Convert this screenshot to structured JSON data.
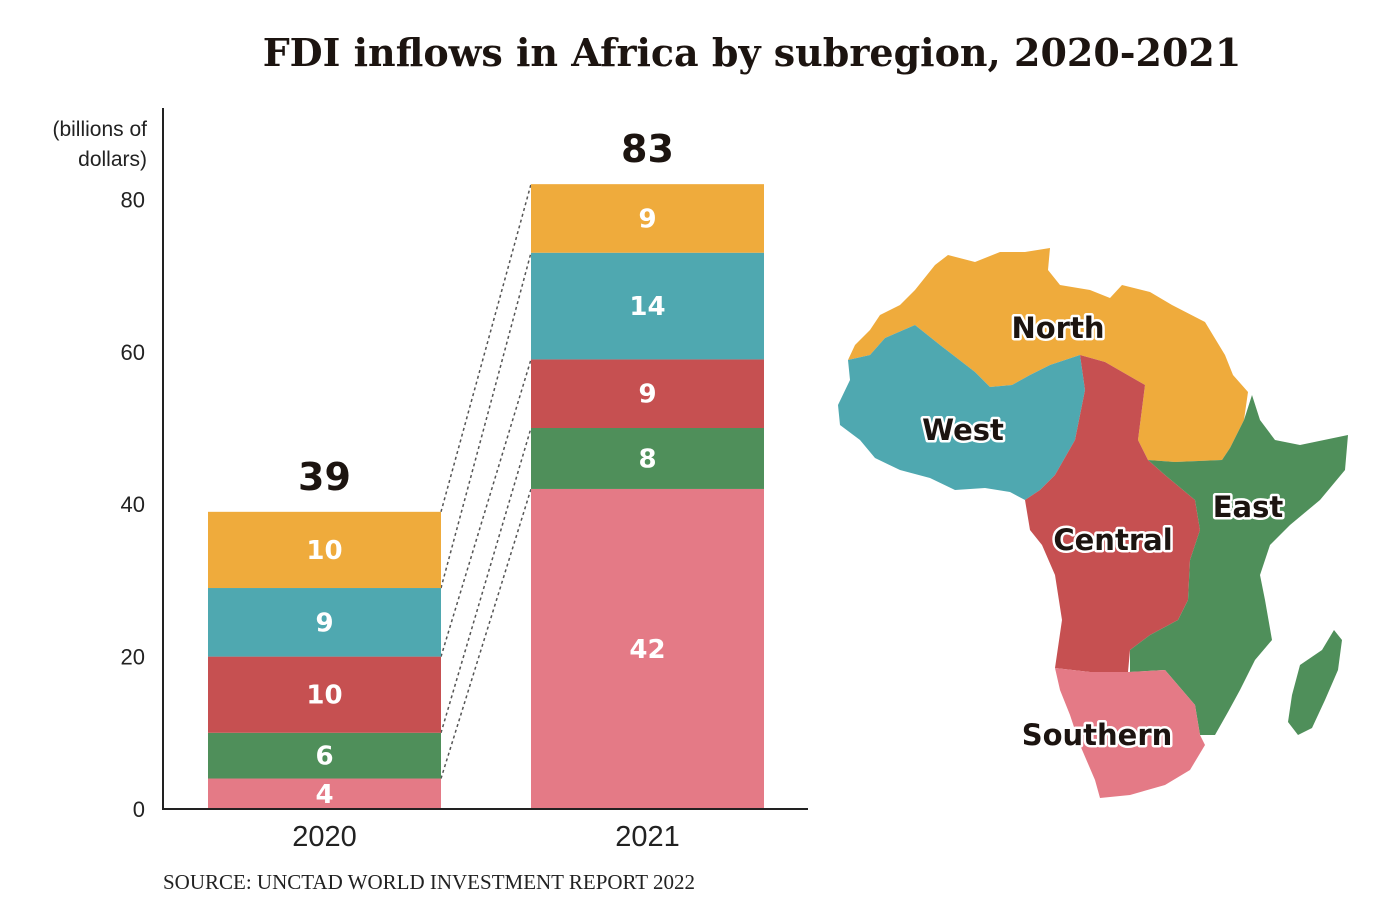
{
  "chart_data": {
    "type": "bar",
    "stacked": true,
    "title": "FDI inflows in Africa by subregion, 2020-2021",
    "unit_label": [
      "(billions of",
      "dollars)"
    ],
    "categories": [
      "2020",
      "2021"
    ],
    "totals": [
      39,
      83
    ],
    "ylim": [
      0,
      83
    ],
    "yticks": [
      0,
      20,
      40,
      60,
      80
    ],
    "series": [
      {
        "name": "Southern",
        "color": "#E47A86",
        "values": [
          4,
          42
        ]
      },
      {
        "name": "East",
        "color": "#4F8F5A",
        "values": [
          6,
          8
        ]
      },
      {
        "name": "Central",
        "color": "#C65051",
        "values": [
          10,
          9
        ]
      },
      {
        "name": "West",
        "color": "#4FA8B0",
        "values": [
          9,
          14
        ]
      },
      {
        "name": "North",
        "color": "#EFAB3C",
        "values": [
          10,
          9
        ]
      }
    ],
    "source": "SOURCE: UNCTAD WORLD INVESTMENT REPORT 2022",
    "grid": false
  },
  "map": {
    "regions": [
      {
        "name": "North",
        "color": "#EFAB3C"
      },
      {
        "name": "West",
        "color": "#4FA8B0"
      },
      {
        "name": "Central",
        "color": "#C65051"
      },
      {
        "name": "East",
        "color": "#4F8F5A"
      },
      {
        "name": "Southern",
        "color": "#E47A86"
      }
    ]
  }
}
